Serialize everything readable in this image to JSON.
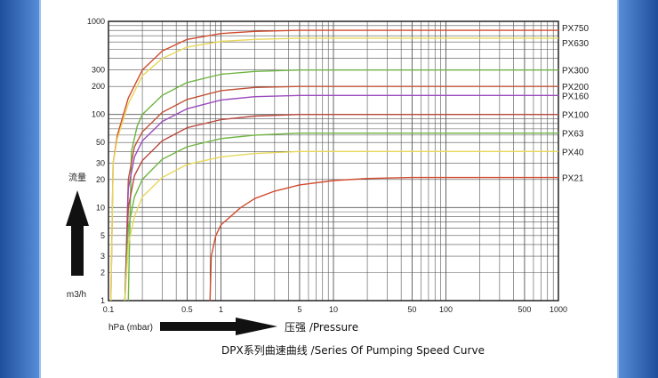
{
  "chart_data": {
    "type": "line",
    "title": "DPX系列曲速曲线 /Series Of Pumping Speed Curve",
    "xlabel": "hPa (mbar)",
    "ylabel": "m3/h",
    "ylabel_cn": "流量",
    "xaxis_caption": "压强 /Pressure",
    "xscale": "log",
    "yscale": "log",
    "xlim": [
      0.1,
      1000
    ],
    "ylim": [
      1,
      1000
    ],
    "x_ticks": [
      {
        "v": 0.1,
        "label": "0.1"
      },
      {
        "v": 0.5,
        "label": "0.5"
      },
      {
        "v": 1,
        "label": "1"
      },
      {
        "v": 5,
        "label": "5"
      },
      {
        "v": 10,
        "label": "10"
      },
      {
        "v": 50,
        "label": "50"
      },
      {
        "v": 100,
        "label": "100"
      },
      {
        "v": 500,
        "label": "500"
      },
      {
        "v": 1000,
        "label": "1000"
      }
    ],
    "y_ticks": [
      {
        "v": 1,
        "label": "1"
      },
      {
        "v": 2,
        "label": "2"
      },
      {
        "v": 3,
        "label": "3"
      },
      {
        "v": 5,
        "label": "5"
      },
      {
        "v": 10,
        "label": "10"
      },
      {
        "v": 20,
        "label": "20"
      },
      {
        "v": 30,
        "label": "30"
      },
      {
        "v": 50,
        "label": "50"
      },
      {
        "v": 100,
        "label": "100"
      },
      {
        "v": 200,
        "label": "200"
      },
      {
        "v": 300,
        "label": "300"
      },
      {
        "v": 1000,
        "label": "1000"
      }
    ],
    "series": [
      {
        "name": "PX750",
        "color": "#d24b2e",
        "x": [
          0.105,
          0.11,
          0.12,
          0.15,
          0.2,
          0.3,
          0.5,
          1,
          2,
          5,
          1000
        ],
        "y": [
          1,
          30,
          60,
          150,
          300,
          480,
          640,
          740,
          780,
          800,
          800
        ]
      },
      {
        "name": "PX630",
        "color": "#e6d85a",
        "x": [
          0.105,
          0.11,
          0.12,
          0.15,
          0.2,
          0.3,
          0.5,
          1,
          2,
          5,
          1000
        ],
        "y": [
          1,
          30,
          55,
          130,
          260,
          400,
          530,
          610,
          640,
          660,
          660
        ]
      },
      {
        "name": "PX300",
        "color": "#6fb543",
        "x": [
          0.15,
          0.16,
          0.18,
          0.2,
          0.3,
          0.5,
          1,
          2,
          5,
          1000
        ],
        "y": [
          1,
          40,
          75,
          100,
          160,
          220,
          270,
          290,
          300,
          300
        ]
      },
      {
        "name": "PX200",
        "color": "#c0543a",
        "x": [
          0.14,
          0.15,
          0.17,
          0.2,
          0.3,
          0.5,
          1,
          2,
          5,
          1000
        ],
        "y": [
          1,
          20,
          45,
          65,
          105,
          145,
          180,
          195,
          200,
          200
        ]
      },
      {
        "name": "PX160",
        "color": "#9a4bbd",
        "x": [
          0.14,
          0.15,
          0.17,
          0.2,
          0.3,
          0.5,
          1,
          2,
          5,
          10,
          1000
        ],
        "y": [
          1,
          16,
          35,
          52,
          84,
          115,
          143,
          155,
          160,
          160,
          160
        ]
      },
      {
        "name": "PX100",
        "color": "#b94a3f",
        "x": [
          0.14,
          0.15,
          0.17,
          0.2,
          0.3,
          0.5,
          1,
          2,
          5,
          10,
          1000
        ],
        "y": [
          1,
          10,
          22,
          32,
          52,
          72,
          88,
          96,
          100,
          100,
          100
        ]
      },
      {
        "name": "PX63",
        "color": "#6fb543",
        "x": [
          0.14,
          0.15,
          0.17,
          0.2,
          0.3,
          0.5,
          1,
          2,
          5,
          10,
          1000
        ],
        "y": [
          1,
          6,
          13,
          20,
          33,
          45,
          55,
          60,
          63,
          63,
          63
        ]
      },
      {
        "name": "PX40",
        "color": "#e6d85a",
        "x": [
          0.14,
          0.15,
          0.17,
          0.2,
          0.3,
          0.5,
          1,
          2,
          5,
          10,
          1000
        ],
        "y": [
          1,
          4,
          8,
          13,
          21,
          29,
          35,
          38,
          40,
          40,
          40
        ]
      },
      {
        "name": "PX21",
        "color": "#d24b2e",
        "x": [
          0.8,
          0.82,
          0.9,
          1,
          1.5,
          2,
          3,
          5,
          10,
          20,
          50,
          1000
        ],
        "y": [
          1,
          3,
          5,
          6.5,
          10,
          12.5,
          15,
          17.5,
          19.5,
          20.5,
          21,
          21
        ]
      }
    ]
  }
}
